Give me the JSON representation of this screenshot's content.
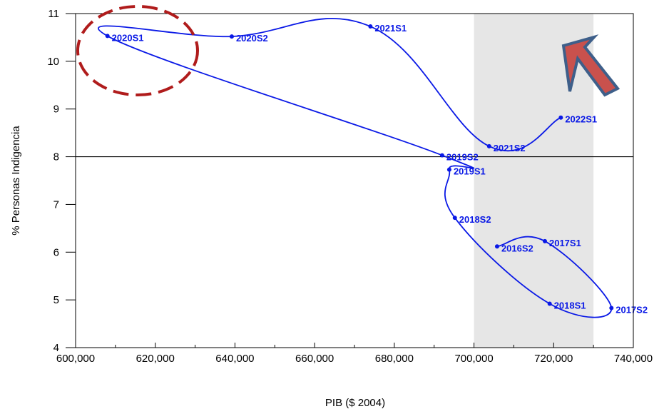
{
  "chart_data": {
    "type": "line",
    "xlabel": "PIB ($ 2004)",
    "ylabel": "% Personas Indigencia",
    "xlim": [
      600000,
      740000
    ],
    "ylim": [
      4,
      11
    ],
    "xticks": [
      600000,
      620000,
      640000,
      660000,
      680000,
      700000,
      720000,
      740000
    ],
    "xtick_labels": [
      "600,000",
      "620,000",
      "640,000",
      "660,000",
      "680,000",
      "700,000",
      "720,000",
      "740,000"
    ],
    "yticks": [
      4,
      5,
      6,
      7,
      8,
      9,
      10,
      11
    ],
    "ytick_labels": [
      "4",
      "5",
      "6",
      "7",
      "8",
      "9",
      "10",
      "11"
    ],
    "reference_line_y": 8,
    "shaded_x_range": [
      700000,
      730000
    ],
    "series": [
      {
        "points": [
          {
            "label": "2016S2",
            "x": 705800,
            "y": 6.12
          },
          {
            "label": "2017S1",
            "x": 717800,
            "y": 6.23
          },
          {
            "label": "2017S2",
            "x": 734500,
            "y": 4.83
          },
          {
            "label": "2018S1",
            "x": 719000,
            "y": 4.92
          },
          {
            "label": "2018S2",
            "x": 695200,
            "y": 6.72
          },
          {
            "label": "2019S1",
            "x": 693800,
            "y": 7.73
          },
          {
            "label": "2019S2",
            "x": 692000,
            "y": 8.03
          },
          {
            "label": "2020S1",
            "x": 608000,
            "y": 10.53
          },
          {
            "label": "2020S2",
            "x": 639200,
            "y": 10.52
          },
          {
            "label": "2021S1",
            "x": 674000,
            "y": 10.73
          },
          {
            "label": "2021S2",
            "x": 703800,
            "y": 8.22
          },
          {
            "label": "2022S1",
            "x": 721800,
            "y": 8.82
          }
        ]
      }
    ],
    "colors": {
      "series": "#0a19e6",
      "shade": "#e6e6e6",
      "ellipse": "#b01c1c",
      "arrow_fill": "#c9514d",
      "arrow_stroke": "#3e5f8a"
    }
  }
}
